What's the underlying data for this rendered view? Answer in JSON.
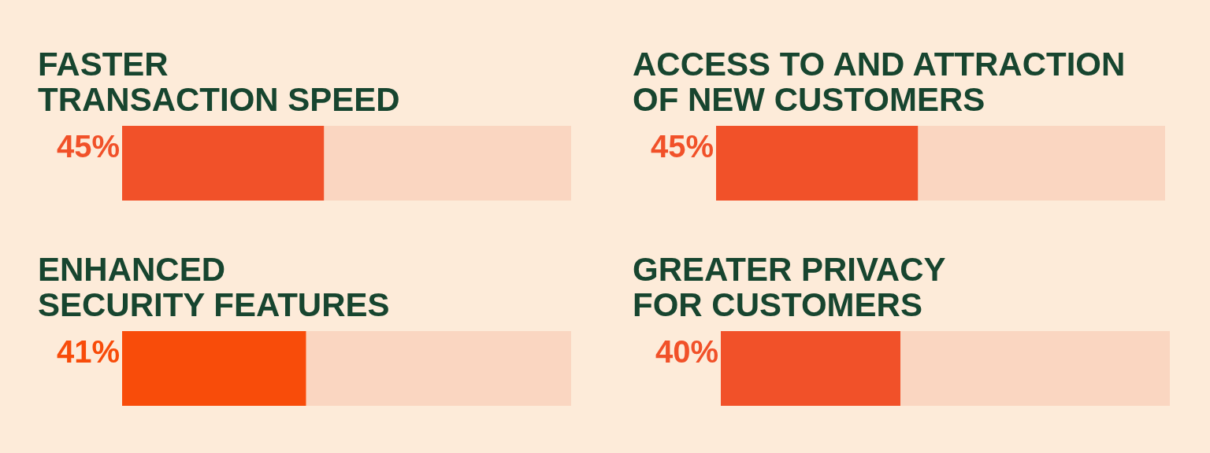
{
  "chart_data": [
    {
      "type": "bar",
      "title": "FASTER\nTRANSACTION SPEED",
      "orientation": "horizontal",
      "stacked": true,
      "categories": [
        null
      ],
      "xlim": [
        0,
        100
      ],
      "series": [
        {
          "color": "#f15129",
          "values": [
            45
          ],
          "value_labels": [
            "45%"
          ]
        },
        {
          "color": "#fad6c1",
          "values": [
            55
          ]
        }
      ]
    },
    {
      "type": "bar",
      "title": "ACCESS TO AND ATTRACTION\nOF NEW CUSTOMERS",
      "orientation": "horizontal",
      "stacked": true,
      "categories": [
        null
      ],
      "xlim": [
        0,
        100
      ],
      "series": [
        {
          "color": "#f15129",
          "values": [
            45
          ],
          "value_labels": [
            "45%"
          ]
        },
        {
          "color": "#fad6c1",
          "values": [
            55
          ]
        }
      ]
    },
    {
      "type": "bar",
      "title": "ENHANCED\nSECURITY FEATURES",
      "orientation": "horizontal",
      "stacked": true,
      "categories": [
        null
      ],
      "xlim": [
        0,
        100
      ],
      "series": [
        {
          "color": "#f84c0a",
          "values": [
            41
          ],
          "value_labels": [
            "41%"
          ]
        },
        {
          "color": "#fad6c1",
          "values": [
            59
          ]
        }
      ]
    },
    {
      "type": "bar",
      "title": "GREATER PRIVACY\nFOR CUSTOMERS",
      "orientation": "horizontal",
      "stacked": true,
      "categories": [
        null
      ],
      "xlim": [
        0,
        100
      ],
      "series": [
        {
          "color": "#f15129",
          "values": [
            40
          ],
          "value_labels": [
            "40%"
          ]
        },
        {
          "color": "#fad6c1",
          "values": [
            60
          ]
        }
      ]
    }
  ]
}
